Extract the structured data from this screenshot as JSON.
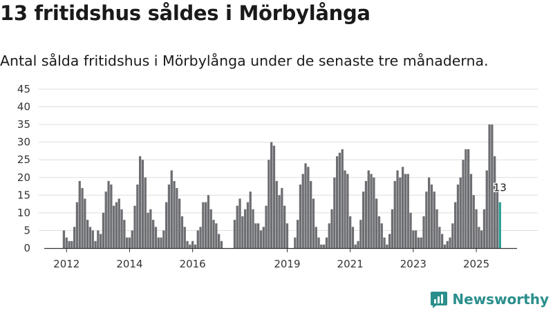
{
  "header": {
    "title": "13 fritidshus såldes i Mörbylånga",
    "subtitle": "Antal sålda fritidshus i Mörbylånga under de senaste tre månaderna."
  },
  "brand": {
    "name": "Newsworthy"
  },
  "colors": {
    "bar": "#6d6e72",
    "highlight": "#2a9d94",
    "grid": "#dddddd",
    "axis": "#333333"
  },
  "chart_data": {
    "type": "bar",
    "title": "13 fritidshus såldes i Mörbylånga",
    "subtitle": "Antal sålda fritidshus i Mörbylånga under de senaste tre månaderna.",
    "xlabel": "",
    "ylabel": "",
    "ylim": [
      0,
      45
    ],
    "yticks": [
      0,
      5,
      10,
      15,
      20,
      25,
      30,
      35,
      40,
      45
    ],
    "xtick_labels": [
      "2012",
      "2014",
      "2016",
      "2019",
      "2021",
      "2023",
      "2025"
    ],
    "start_month": "2011-12",
    "grid": true,
    "legend": "none",
    "highlight_last": true,
    "last_label": "13",
    "values": [
      5,
      3,
      2,
      2,
      6,
      13,
      19,
      17,
      14,
      8,
      6,
      5,
      2,
      5,
      4,
      10,
      16,
      19,
      18,
      12,
      13,
      14,
      11,
      8,
      3,
      3,
      5,
      12,
      18,
      26,
      25,
      20,
      10,
      11,
      8,
      6,
      3,
      3,
      5,
      13,
      18,
      22,
      19,
      17,
      14,
      9,
      6,
      2,
      1,
      2,
      1,
      5,
      6,
      13,
      13,
      15,
      11,
      8,
      7,
      4,
      2,
      0,
      0,
      0,
      0,
      8,
      12,
      14,
      9,
      11,
      13,
      16,
      11,
      7,
      7,
      5,
      6,
      12,
      25,
      30,
      29,
      19,
      15,
      17,
      12,
      7,
      0,
      0,
      3,
      8,
      18,
      21,
      24,
      23,
      19,
      14,
      6,
      3,
      1,
      1,
      3,
      7,
      11,
      20,
      26,
      27,
      28,
      22,
      21,
      9,
      6,
      1,
      2,
      8,
      16,
      19,
      22,
      21,
      20,
      14,
      9,
      7,
      3,
      1,
      4,
      11,
      19,
      22,
      20,
      23,
      21,
      21,
      10,
      5,
      5,
      3,
      3,
      9,
      16,
      20,
      18,
      16,
      11,
      6,
      4,
      1,
      2,
      3,
      7,
      13,
      18,
      20,
      25,
      28,
      28,
      21,
      15,
      11,
      6,
      5,
      11,
      22,
      35,
      35,
      26,
      16,
      13
    ]
  }
}
